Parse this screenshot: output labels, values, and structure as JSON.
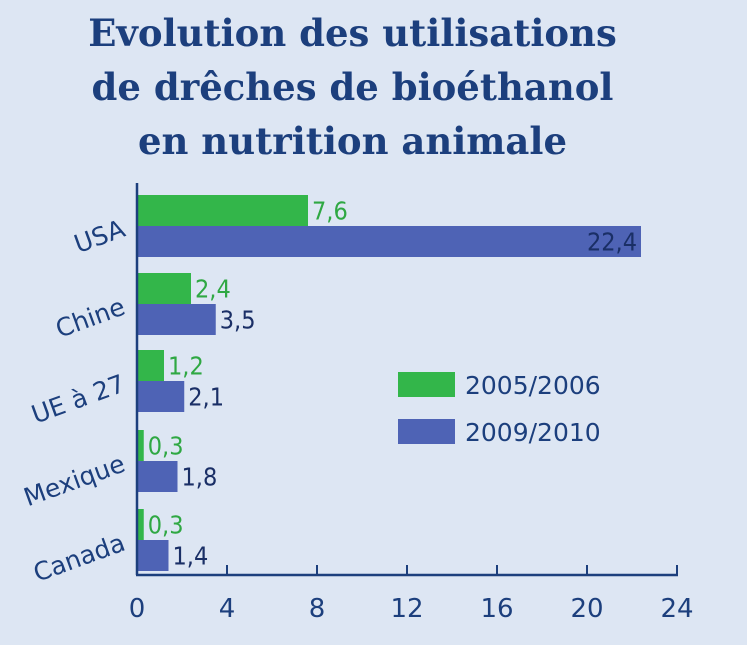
{
  "chart_data": {
    "type": "bar",
    "orientation": "horizontal",
    "title_lines": [
      "Evolution des utilisations",
      "de drêches de bioéthanol",
      "en nutrition animale"
    ],
    "categories": [
      "USA",
      "Chine",
      "UE à 27",
      "Mexique",
      "Canada"
    ],
    "series": [
      {
        "name": "2005/2006",
        "color": "#33b64a",
        "label_color": "#2fa843",
        "values": [
          7.6,
          2.4,
          1.2,
          0.3,
          0.3
        ],
        "labels": [
          "7,6",
          "2,4",
          "1,2",
          "0,3",
          "0,3"
        ]
      },
      {
        "name": "2009/2010",
        "color": "#4e63b5",
        "label_color": "#1a2f66",
        "values": [
          22.4,
          3.5,
          2.1,
          1.8,
          1.4
        ],
        "labels": [
          "22,4",
          "3,5",
          "2,1",
          "1,8",
          "1,4"
        ]
      }
    ],
    "x_ticks": [
      0,
      4,
      8,
      12,
      16,
      20,
      24
    ],
    "xlim": [
      0,
      24
    ],
    "grid": false,
    "legend_position": "right",
    "axis_color": "#1c3f7d"
  }
}
